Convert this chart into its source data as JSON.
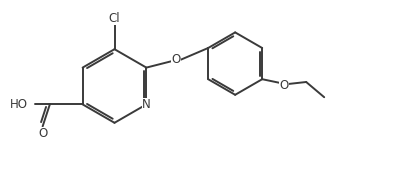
{
  "bg_color": "#ffffff",
  "line_color": "#3a3a3a",
  "text_color": "#3a3a3a",
  "line_width": 1.4,
  "font_size": 8.5,
  "fig_width": 4.01,
  "fig_height": 1.76,
  "dpi": 100,
  "xlim": [
    0,
    10
  ],
  "ylim": [
    0,
    4.4
  ]
}
